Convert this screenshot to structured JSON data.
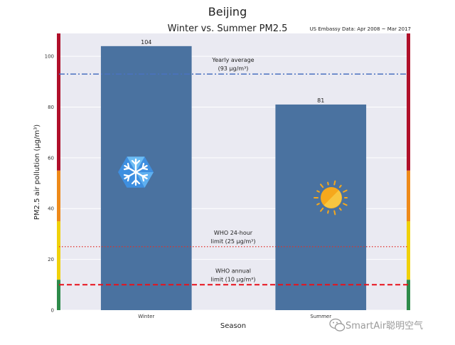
{
  "chart_data": {
    "type": "bar",
    "suptitle": "Beijing",
    "title": "Winter vs. Summer PM2.5",
    "source_note": "US Embassy Data: Apr 2008 ~ Mar 2017",
    "xlabel": "Season",
    "ylabel": "PM2.5 air pollution (μg/m³)",
    "categories": [
      "Winter",
      "Summer"
    ],
    "values": [
      104,
      81
    ],
    "value_labels": [
      "104",
      "81"
    ],
    "bar_color": "#4a72a0",
    "ylim": [
      0,
      109
    ],
    "yticks": [
      0,
      20,
      40,
      60,
      80,
      100
    ],
    "ytick_labels": [
      "0",
      "20",
      "40",
      "60",
      "80",
      "100"
    ],
    "grid": true,
    "reference_lines": [
      {
        "value": 93,
        "label_line1": "Yearly average",
        "label_line2": "(93 μg/m³)",
        "style": "dashdot",
        "color": "#4a72c0"
      },
      {
        "value": 25,
        "label_line1": "WHO 24-hour",
        "label_line2": "limit (25 μg/m³)",
        "style": "dotted",
        "color": "#e0302a"
      },
      {
        "value": 10,
        "label_line1": "WHO annual",
        "label_line2": "limit (10 μg/m³)",
        "style": "dashed",
        "color": "#e8111a"
      }
    ],
    "side_bands": [
      {
        "from": 0,
        "to": 12,
        "color": "#2e8b4a"
      },
      {
        "from": 12,
        "to": 35,
        "color": "#f0d10a"
      },
      {
        "from": 35,
        "to": 55,
        "color": "#ee8a1a"
      },
      {
        "from": 55,
        "to": 109,
        "color": "#b0102a"
      }
    ],
    "icons": [
      "snowflake-icon",
      "sun-icon"
    ]
  },
  "watermark": "SmartAir聪明空气"
}
